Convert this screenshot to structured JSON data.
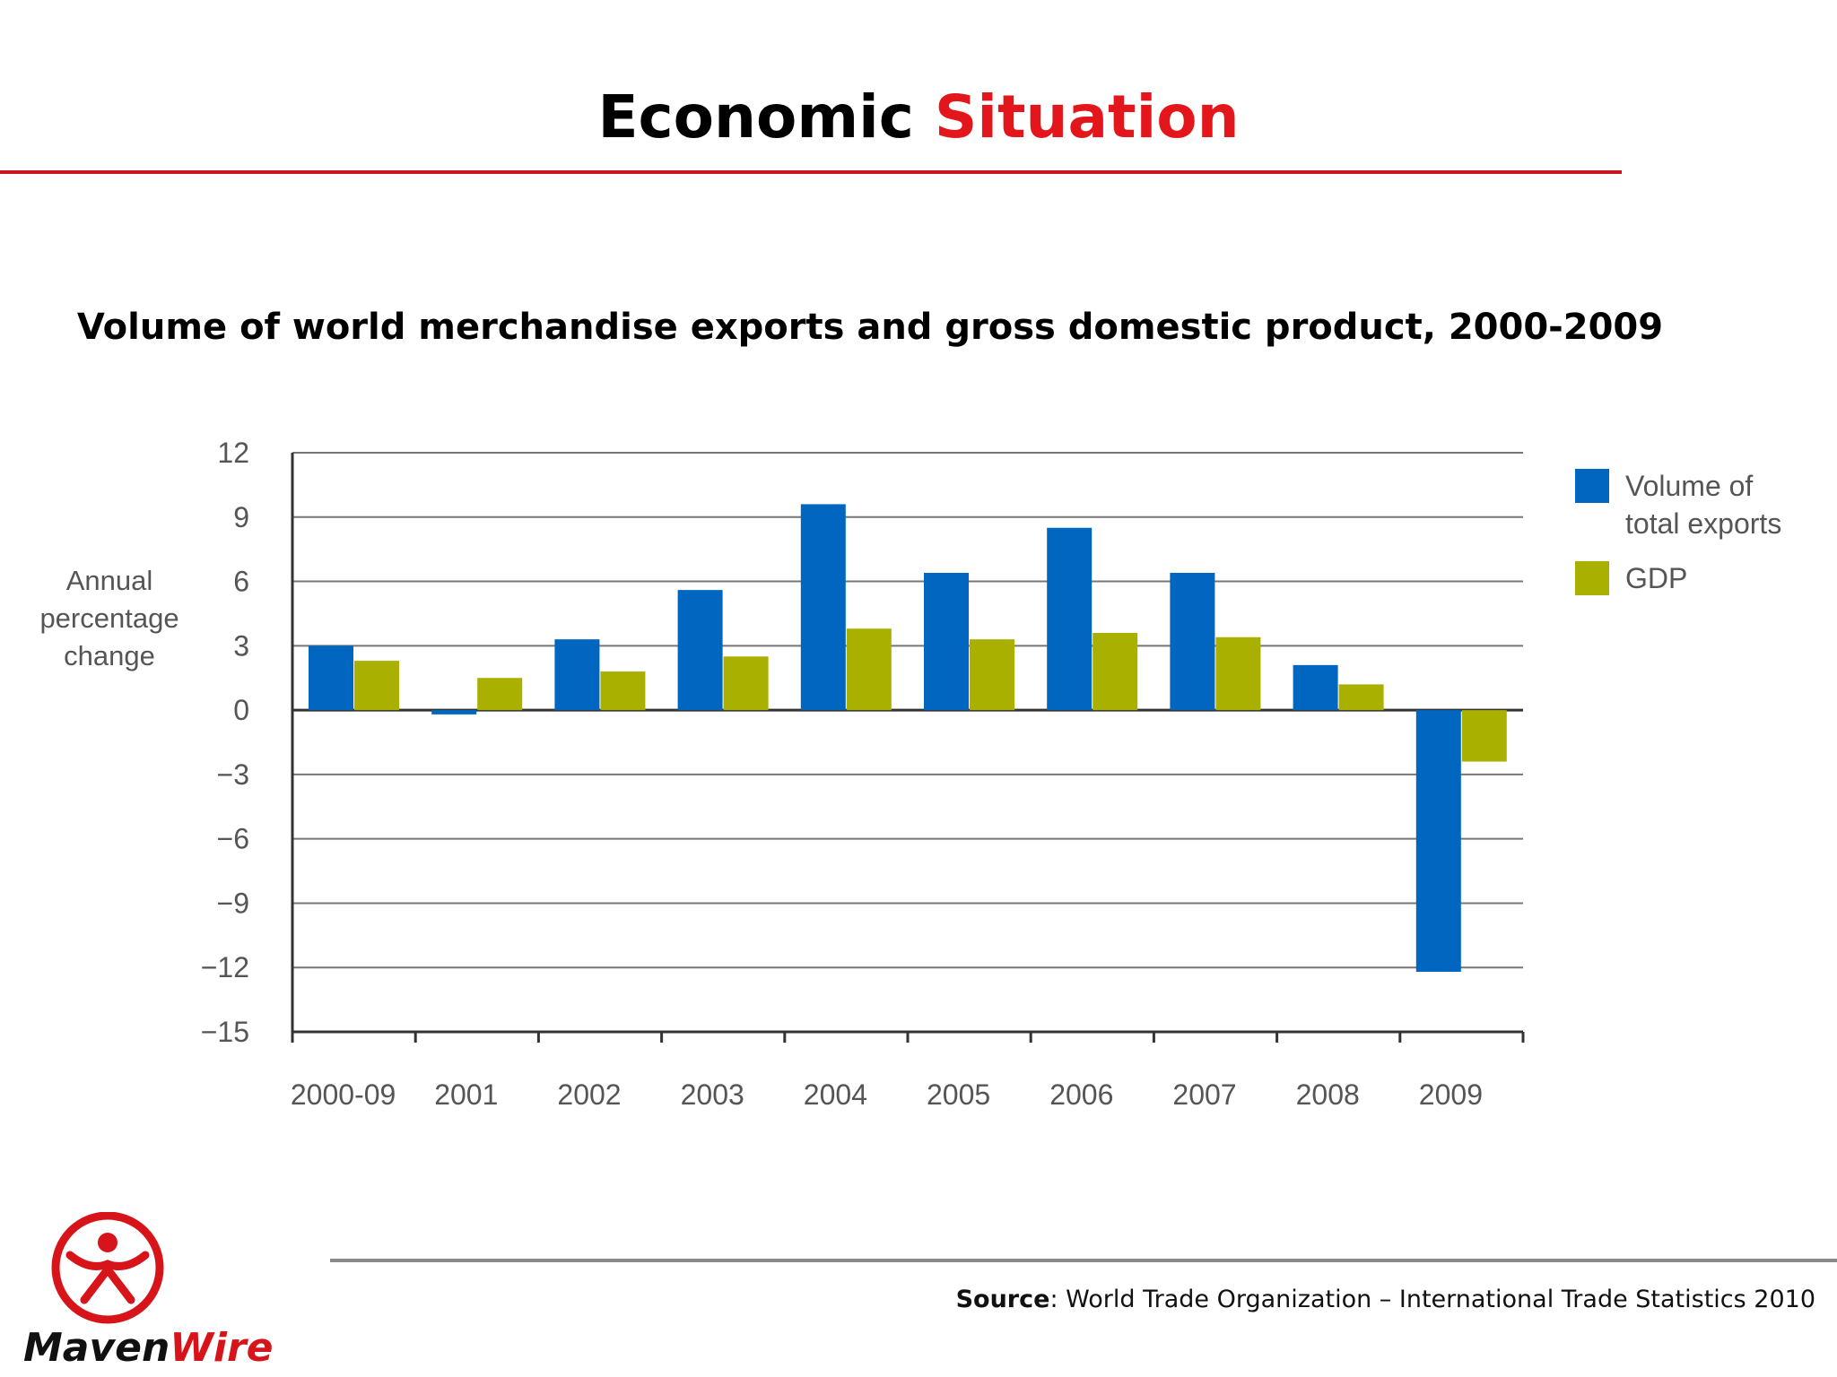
{
  "header": {
    "title_part1": "Economic",
    "title_part2": "Situation"
  },
  "source": {
    "label": "Source",
    "text": ": World Trade Organization – International Trade Statistics 2010"
  },
  "logo": {
    "text_a": "Maven",
    "text_b": "Wire",
    "color_a": "#111111",
    "color_b": "#d8141b"
  },
  "colors": {
    "accent": "#e3161c",
    "exports": "#0066bf",
    "gdp": "#aab000"
  },
  "chart_data": {
    "type": "bar",
    "title": "Volume of world merchandise exports and gross domestic product, 2000-2009",
    "ylabel": [
      "Annual",
      "percentage",
      "change"
    ],
    "xlabel": "",
    "categories": [
      "2000-09",
      "2001",
      "2002",
      "2003",
      "2004",
      "2005",
      "2006",
      "2007",
      "2008",
      "2009"
    ],
    "series": [
      {
        "name": "Volume of total exports",
        "legend_lines": [
          "Volume of",
          "total exports"
        ],
        "color": "#0066bf",
        "values": [
          3.0,
          -0.2,
          3.3,
          5.6,
          9.6,
          6.4,
          8.5,
          6.4,
          2.1,
          -12.2
        ]
      },
      {
        "name": "GDP",
        "legend_lines": [
          "GDP"
        ],
        "color": "#aab000",
        "values": [
          2.3,
          1.5,
          1.8,
          2.5,
          3.8,
          3.3,
          3.6,
          3.4,
          1.2,
          -2.4
        ]
      }
    ],
    "ylim": [
      -15,
      12
    ],
    "yticks": [
      12,
      9,
      6,
      3,
      0,
      -3,
      -6,
      -9,
      -12,
      -15
    ],
    "grid": true,
    "legend": "right"
  }
}
